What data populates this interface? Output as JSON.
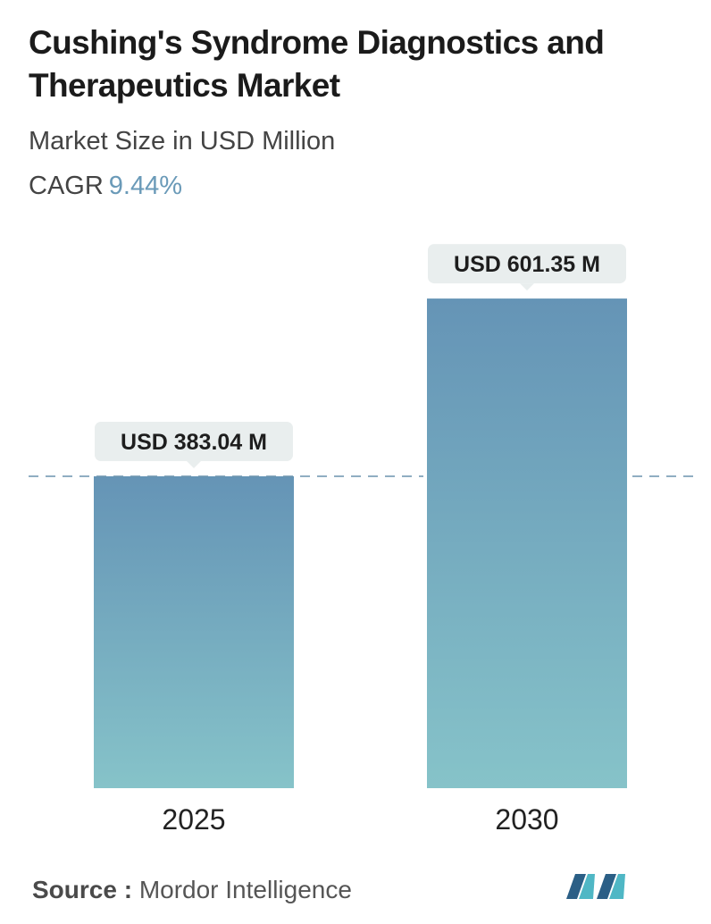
{
  "title": "Cushing's Syndrome Diagnostics and Therapeutics Market",
  "subtitle": "Market Size in USD Million",
  "cagr_label": "CAGR",
  "cagr_value": "9.44%",
  "source_label": "Source :",
  "source_name": "Mordor Intelligence",
  "colors": {
    "bar_top": "#6594b6",
    "bar_bottom": "#86c3c9",
    "dashed_line": "#6c93ad",
    "label_bg": "#e9eeee",
    "cagr": "#6a9ab8"
  },
  "chart_data": {
    "type": "bar",
    "title": "Cushing's Syndrome Diagnostics and Therapeutics Market",
    "subtitle": "Market Size in USD Million",
    "categories": [
      "2025",
      "2030"
    ],
    "values": [
      383.04,
      601.35
    ],
    "data_labels": [
      "USD 383.04 M",
      "USD 601.35 M"
    ],
    "reference_line": 383.04,
    "grid": false,
    "legend": "none"
  }
}
